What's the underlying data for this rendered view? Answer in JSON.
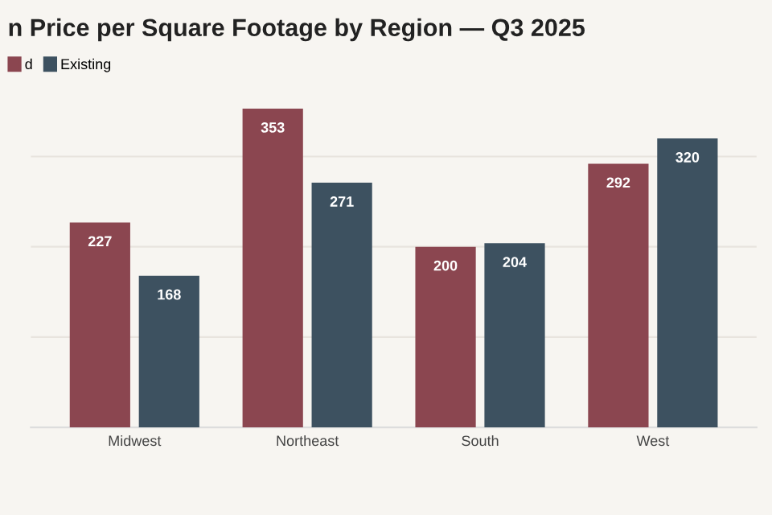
{
  "chart_data": {
    "type": "bar",
    "title": "n Price per Square Footage by Region — Q3 2025",
    "categories": [
      "Midwest",
      "Northeast",
      "South",
      "West"
    ],
    "series": [
      {
        "name": "d",
        "color": "#8b4650",
        "values": [
          227,
          353,
          200,
          292
        ]
      },
      {
        "name": "Existing",
        "color": "#3d5160",
        "values": [
          168,
          271,
          204,
          320
        ]
      }
    ],
    "grid": "y",
    "legend": "top left",
    "data_labels": true,
    "tick_labels": "x"
  }
}
